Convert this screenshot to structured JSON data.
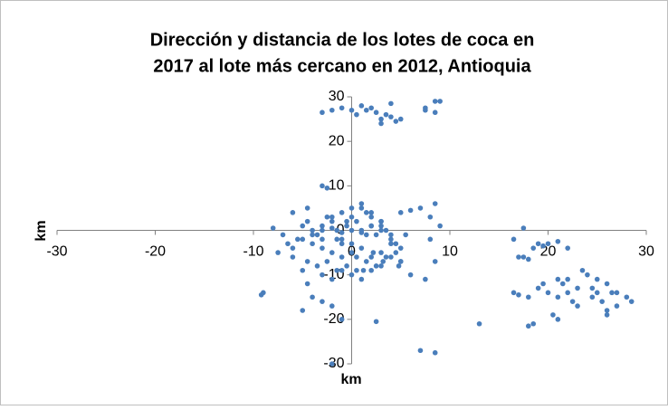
{
  "chart_data": {
    "type": "scatter",
    "title": [
      "Dirección y distancia de los lotes de coca en",
      "2017 al lote más cercano en 2012, Antioquia"
    ],
    "x_label": "km",
    "y_label": "km",
    "color": "#4a7ebb",
    "xlim": [
      -30,
      30
    ],
    "ylim": [
      -30,
      30
    ],
    "xticks": [
      -30,
      -20,
      -10,
      0,
      10,
      20,
      30
    ],
    "yticks": [
      -30,
      -20,
      -10,
      0,
      10,
      20,
      30
    ],
    "x": [
      -2,
      -1,
      0,
      1,
      2,
      2.5,
      -3,
      3,
      4,
      4.5,
      3.5,
      5,
      4,
      7.5,
      7.5,
      8.5,
      9,
      8.5,
      0.5,
      1.5,
      3,
      -8,
      -7,
      -6.5,
      -6,
      -7.5,
      -5,
      -4.5,
      -3,
      -4,
      -5,
      -2,
      -9,
      -9.2,
      -3,
      -2.5,
      -6,
      -4.5,
      -1,
      2.5,
      -2,
      5,
      6,
      7,
      8,
      8.5,
      9,
      8,
      8.5,
      6,
      7.5,
      5,
      7,
      8.5,
      13,
      16.5,
      17,
      17.5,
      18,
      17.5,
      18.5,
      19,
      19.5,
      20,
      21,
      22,
      18,
      18.5,
      16.5,
      17,
      18,
      19,
      19.5,
      20,
      21,
      21.5,
      22,
      22.5,
      21,
      20.5,
      21,
      23,
      23.5,
      24,
      24.5,
      25,
      25,
      26,
      26.5,
      26,
      26,
      27,
      28,
      28.5,
      27,
      22,
      23,
      24.5,
      25.5,
      -5,
      -4.5,
      -4,
      -3.5,
      -3,
      -2.5,
      -2,
      -1.5,
      -1,
      -0.5,
      0,
      0.5,
      1,
      1.5,
      2,
      2.5,
      3,
      3.5,
      4,
      4.5,
      5,
      -5,
      -4,
      -3,
      -2,
      -1,
      0,
      1,
      2,
      3,
      4,
      5,
      -4.5,
      -3.5,
      -2.5,
      -1.5,
      -0.5,
      0.5,
      1.5,
      2.5,
      3.5,
      4.5,
      -4,
      -3,
      -2,
      -1,
      0,
      1,
      2,
      3,
      4,
      -3,
      -2,
      -1,
      0,
      1,
      2,
      3,
      -5.5,
      -6,
      5.5,
      4.8,
      -1,
      0.5,
      1.2,
      2.2,
      3.2,
      -0.5,
      1,
      2,
      3,
      0,
      1.5,
      -2,
      -1,
      0,
      1,
      2,
      3,
      4,
      -3,
      -1.5
    ],
    "y": [
      27,
      27.5,
      27,
      28,
      27.5,
      26.5,
      26.5,
      25,
      25.5,
      24.5,
      26,
      25,
      28.5,
      27,
      27.5,
      29,
      29,
      26.5,
      26,
      27,
      24,
      0.5,
      -1,
      -3,
      -6,
      -5,
      -9,
      -12,
      -16,
      -15,
      -18,
      -17,
      -14,
      -14.5,
      10,
      9.5,
      4,
      5,
      -20,
      -20.5,
      -30,
      4,
      4.5,
      5,
      3,
      6,
      1,
      -2,
      -7,
      -10,
      -11,
      -7,
      -27,
      -27.5,
      -21,
      -2,
      -6,
      -6,
      -6.5,
      0.5,
      -4,
      -3,
      -3.5,
      -3,
      -2.5,
      -4,
      -21.5,
      -21,
      -14,
      -14.5,
      -15,
      -13,
      -12,
      -14,
      -11,
      -12,
      -14,
      -16,
      -15,
      -19,
      -20,
      -17,
      -9,
      -10,
      -13,
      -14,
      -11,
      -12,
      -14,
      -19,
      -18,
      -17,
      -15,
      -16,
      -14,
      -11,
      -13,
      -15,
      -16,
      1,
      2,
      0,
      -1,
      1,
      3,
      2,
      0,
      -2,
      1,
      3,
      2,
      0,
      4,
      1,
      -1,
      2,
      0,
      -2,
      -3,
      -4,
      -2,
      -3,
      -4,
      -5,
      -6,
      -5,
      -4,
      -6,
      -5,
      -6,
      -7,
      -7,
      -8,
      -7,
      -9,
      -8,
      -9,
      -7,
      -8,
      -6,
      -5,
      -1,
      -2,
      3,
      4,
      5,
      6,
      3,
      2,
      -3,
      -10,
      -11,
      -9,
      -10,
      -11,
      -9,
      -8,
      -2,
      -4,
      -1,
      -8,
      -3,
      -6,
      -9,
      -5,
      -7,
      2,
      5,
      4,
      1,
      -3,
      -1,
      0.5,
      -0.5,
      0,
      -0.5,
      1,
      0,
      -1,
      0,
      -2
    ]
  }
}
